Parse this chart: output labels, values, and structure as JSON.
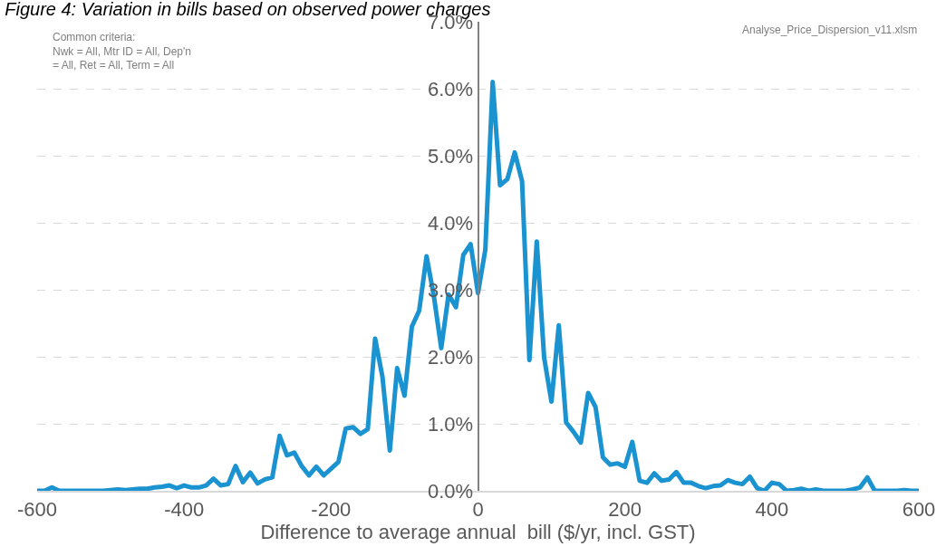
{
  "chart_data": {
    "type": "line",
    "title": "Figure 4: Variation in bills based on observed power charges",
    "xlabel": "Difference to average annual  bill ($/yr, incl. GST)",
    "annotations": [
      "Common criteria:\nNwk = All, Mtr ID = All, Dep'n\n= All, Ret = All, Term = All",
      "Analyse_Price_Dispersion_v11.xlsm"
    ],
    "x": [
      -600,
      -590,
      -580,
      -570,
      -560,
      -550,
      -540,
      -530,
      -520,
      -510,
      -500,
      -490,
      -480,
      -470,
      -460,
      -450,
      -440,
      -430,
      -420,
      -410,
      -400,
      -390,
      -380,
      -370,
      -360,
      -350,
      -340,
      -330,
      -320,
      -310,
      -300,
      -290,
      -280,
      -270,
      -260,
      -250,
      -240,
      -230,
      -220,
      -210,
      -200,
      -190,
      -180,
      -170,
      -160,
      -150,
      -140,
      -130,
      -120,
      -110,
      -100,
      -90,
      -80,
      -70,
      -60,
      -50,
      -40,
      -30,
      -20,
      -10,
      0,
      10,
      20,
      30,
      40,
      50,
      60,
      70,
      80,
      90,
      100,
      110,
      120,
      130,
      140,
      150,
      160,
      170,
      180,
      190,
      200,
      210,
      220,
      230,
      240,
      250,
      260,
      270,
      280,
      290,
      300,
      310,
      320,
      330,
      340,
      350,
      360,
      370,
      380,
      390,
      400,
      410,
      420,
      430,
      440,
      450,
      460,
      470,
      480,
      490,
      500,
      510,
      520,
      530,
      540,
      550,
      560,
      570,
      580,
      590,
      600
    ],
    "series": [
      {
        "color": "#1a93d0",
        "values": [
          0,
          0,
          0.05,
          0,
          0,
          0,
          0,
          0,
          0,
          0,
          0.01,
          0.02,
          0.01,
          0.02,
          0.03,
          0.03,
          0.05,
          0.06,
          0.08,
          0.04,
          0.08,
          0.05,
          0.05,
          0.08,
          0.18,
          0.08,
          0.1,
          0.37,
          0.13,
          0.27,
          0.11,
          0.17,
          0.2,
          0.82,
          0.53,
          0.57,
          0.37,
          0.23,
          0.36,
          0.23,
          0.33,
          0.43,
          0.93,
          0.95,
          0.85,
          0.92,
          2.27,
          1.7,
          0.6,
          1.83,
          1.42,
          2.45,
          2.69,
          3.5,
          2.9,
          2.13,
          2.93,
          2.74,
          3.52,
          3.68,
          2.95,
          3.6,
          6.1,
          4.56,
          4.65,
          5.05,
          4.62,
          1.95,
          3.72,
          1.99,
          1.33,
          2.47,
          1.02,
          0.88,
          0.72,
          1.46,
          1.25,
          0.5,
          0.39,
          0.41,
          0.36,
          0.73,
          0.15,
          0.12,
          0.26,
          0.15,
          0.17,
          0.28,
          0.12,
          0.12,
          0.07,
          0.04,
          0.07,
          0.08,
          0.16,
          0.12,
          0.1,
          0.21,
          0.04,
          0,
          0.12,
          0.1,
          0,
          0.01,
          0.03,
          0,
          0.02,
          0,
          0,
          0,
          0,
          0.02,
          0.05,
          0.2,
          0,
          0,
          0,
          0,
          0.01,
          0,
          0
        ]
      }
    ],
    "xlim": [
      -600,
      600
    ],
    "ylim": [
      0,
      7
    ],
    "xticks": [
      -600,
      -400,
      -200,
      0,
      200,
      400,
      600
    ],
    "yticks": [
      {
        "value": 0,
        "label": "0.0%"
      },
      {
        "value": 1,
        "label": "1.0%"
      },
      {
        "value": 2,
        "label": "2.0%"
      },
      {
        "value": 3,
        "label": "3.0%"
      },
      {
        "value": 4,
        "label": "4.0%"
      },
      {
        "value": 5,
        "label": "5.0%"
      },
      {
        "value": 6,
        "label": "6.0%"
      },
      {
        "value": 7,
        "label": "7.0%"
      }
    ],
    "grid": "y",
    "legend": false,
    "marker": "none",
    "line_style": "solid"
  }
}
